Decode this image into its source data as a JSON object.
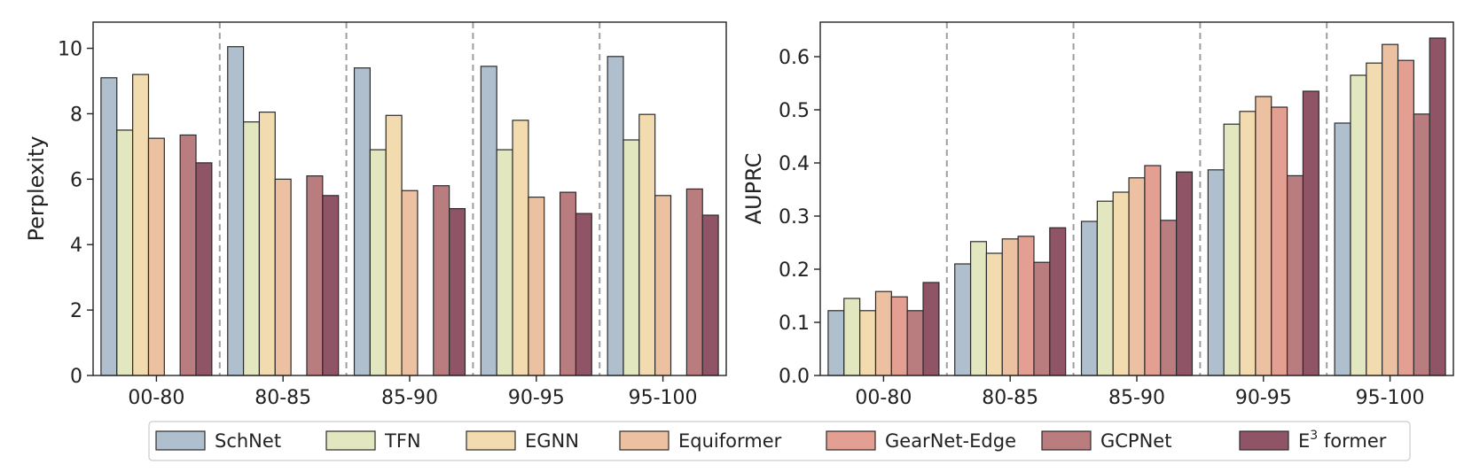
{
  "legend": {
    "items": [
      {
        "name": "SchNet",
        "color": "#b0bfcd"
      },
      {
        "name": "TFN",
        "color": "#e2e7bf"
      },
      {
        "name": "EGNN",
        "color": "#f3dbb0"
      },
      {
        "name": "Equiformer",
        "color": "#ecc1a1"
      },
      {
        "name": "GearNet-Edge",
        "color": "#e39f92"
      },
      {
        "name": "GCPNet",
        "color": "#b97c7f"
      },
      {
        "name": "E³ former",
        "color": "#8f5466"
      }
    ],
    "last_label_base": "E",
    "last_label_sup": "3",
    "last_label_rest": " former"
  },
  "chart_data": [
    {
      "type": "bar",
      "title": "",
      "xlabel": "",
      "ylabel": "Perplexity",
      "categories": [
        "00-80",
        "80-85",
        "85-90",
        "90-95",
        "95-100"
      ],
      "ylim": [
        0,
        10.8
      ],
      "yticks": [
        0,
        2,
        4,
        6,
        8,
        10
      ],
      "tick_labels": [
        "0",
        "2",
        "4",
        "6",
        "8",
        "10"
      ],
      "grid": false,
      "separators": "dashed",
      "series": [
        {
          "name": "SchNet",
          "values": [
            9.1,
            10.05,
            9.4,
            9.45,
            9.75
          ]
        },
        {
          "name": "TFN",
          "values": [
            7.5,
            7.75,
            6.9,
            6.9,
            7.2
          ]
        },
        {
          "name": "EGNN",
          "values": [
            9.2,
            8.05,
            7.95,
            7.8,
            7.98
          ]
        },
        {
          "name": "Equiformer",
          "values": [
            7.25,
            6.0,
            5.65,
            5.45,
            5.5
          ]
        },
        {
          "name": "GearNet-Edge",
          "values": [
            null,
            null,
            null,
            null,
            null
          ]
        },
        {
          "name": "GCPNet",
          "values": [
            7.35,
            6.1,
            5.8,
            5.6,
            5.7
          ]
        },
        {
          "name": "E³ former",
          "values": [
            6.5,
            5.5,
            5.1,
            4.95,
            4.9
          ]
        }
      ]
    },
    {
      "type": "bar",
      "title": "",
      "xlabel": "",
      "ylabel": "AUPRC",
      "categories": [
        "00-80",
        "80-85",
        "85-90",
        "90-95",
        "95-100"
      ],
      "ylim": [
        0,
        0.665
      ],
      "yticks": [
        0,
        0.1,
        0.2,
        0.3,
        0.4,
        0.5,
        0.6
      ],
      "tick_labels": [
        "0.0",
        "0.1",
        "0.2",
        "0.3",
        "0.4",
        "0.5",
        "0.6"
      ],
      "grid": false,
      "separators": "dashed",
      "series": [
        {
          "name": "SchNet",
          "values": [
            0.122,
            0.21,
            0.29,
            0.387,
            0.475
          ]
        },
        {
          "name": "TFN",
          "values": [
            0.145,
            0.252,
            0.328,
            0.473,
            0.565
          ]
        },
        {
          "name": "EGNN",
          "values": [
            0.122,
            0.23,
            0.345,
            0.497,
            0.588
          ]
        },
        {
          "name": "Equiformer",
          "values": [
            0.158,
            0.257,
            0.372,
            0.525,
            0.623
          ]
        },
        {
          "name": "GearNet-Edge",
          "values": [
            0.148,
            0.262,
            0.395,
            0.505,
            0.593
          ]
        },
        {
          "name": "GCPNet",
          "values": [
            0.122,
            0.213,
            0.292,
            0.376,
            0.492
          ]
        },
        {
          "name": "E³ former",
          "values": [
            0.175,
            0.278,
            0.383,
            0.535,
            0.635
          ]
        }
      ]
    }
  ]
}
